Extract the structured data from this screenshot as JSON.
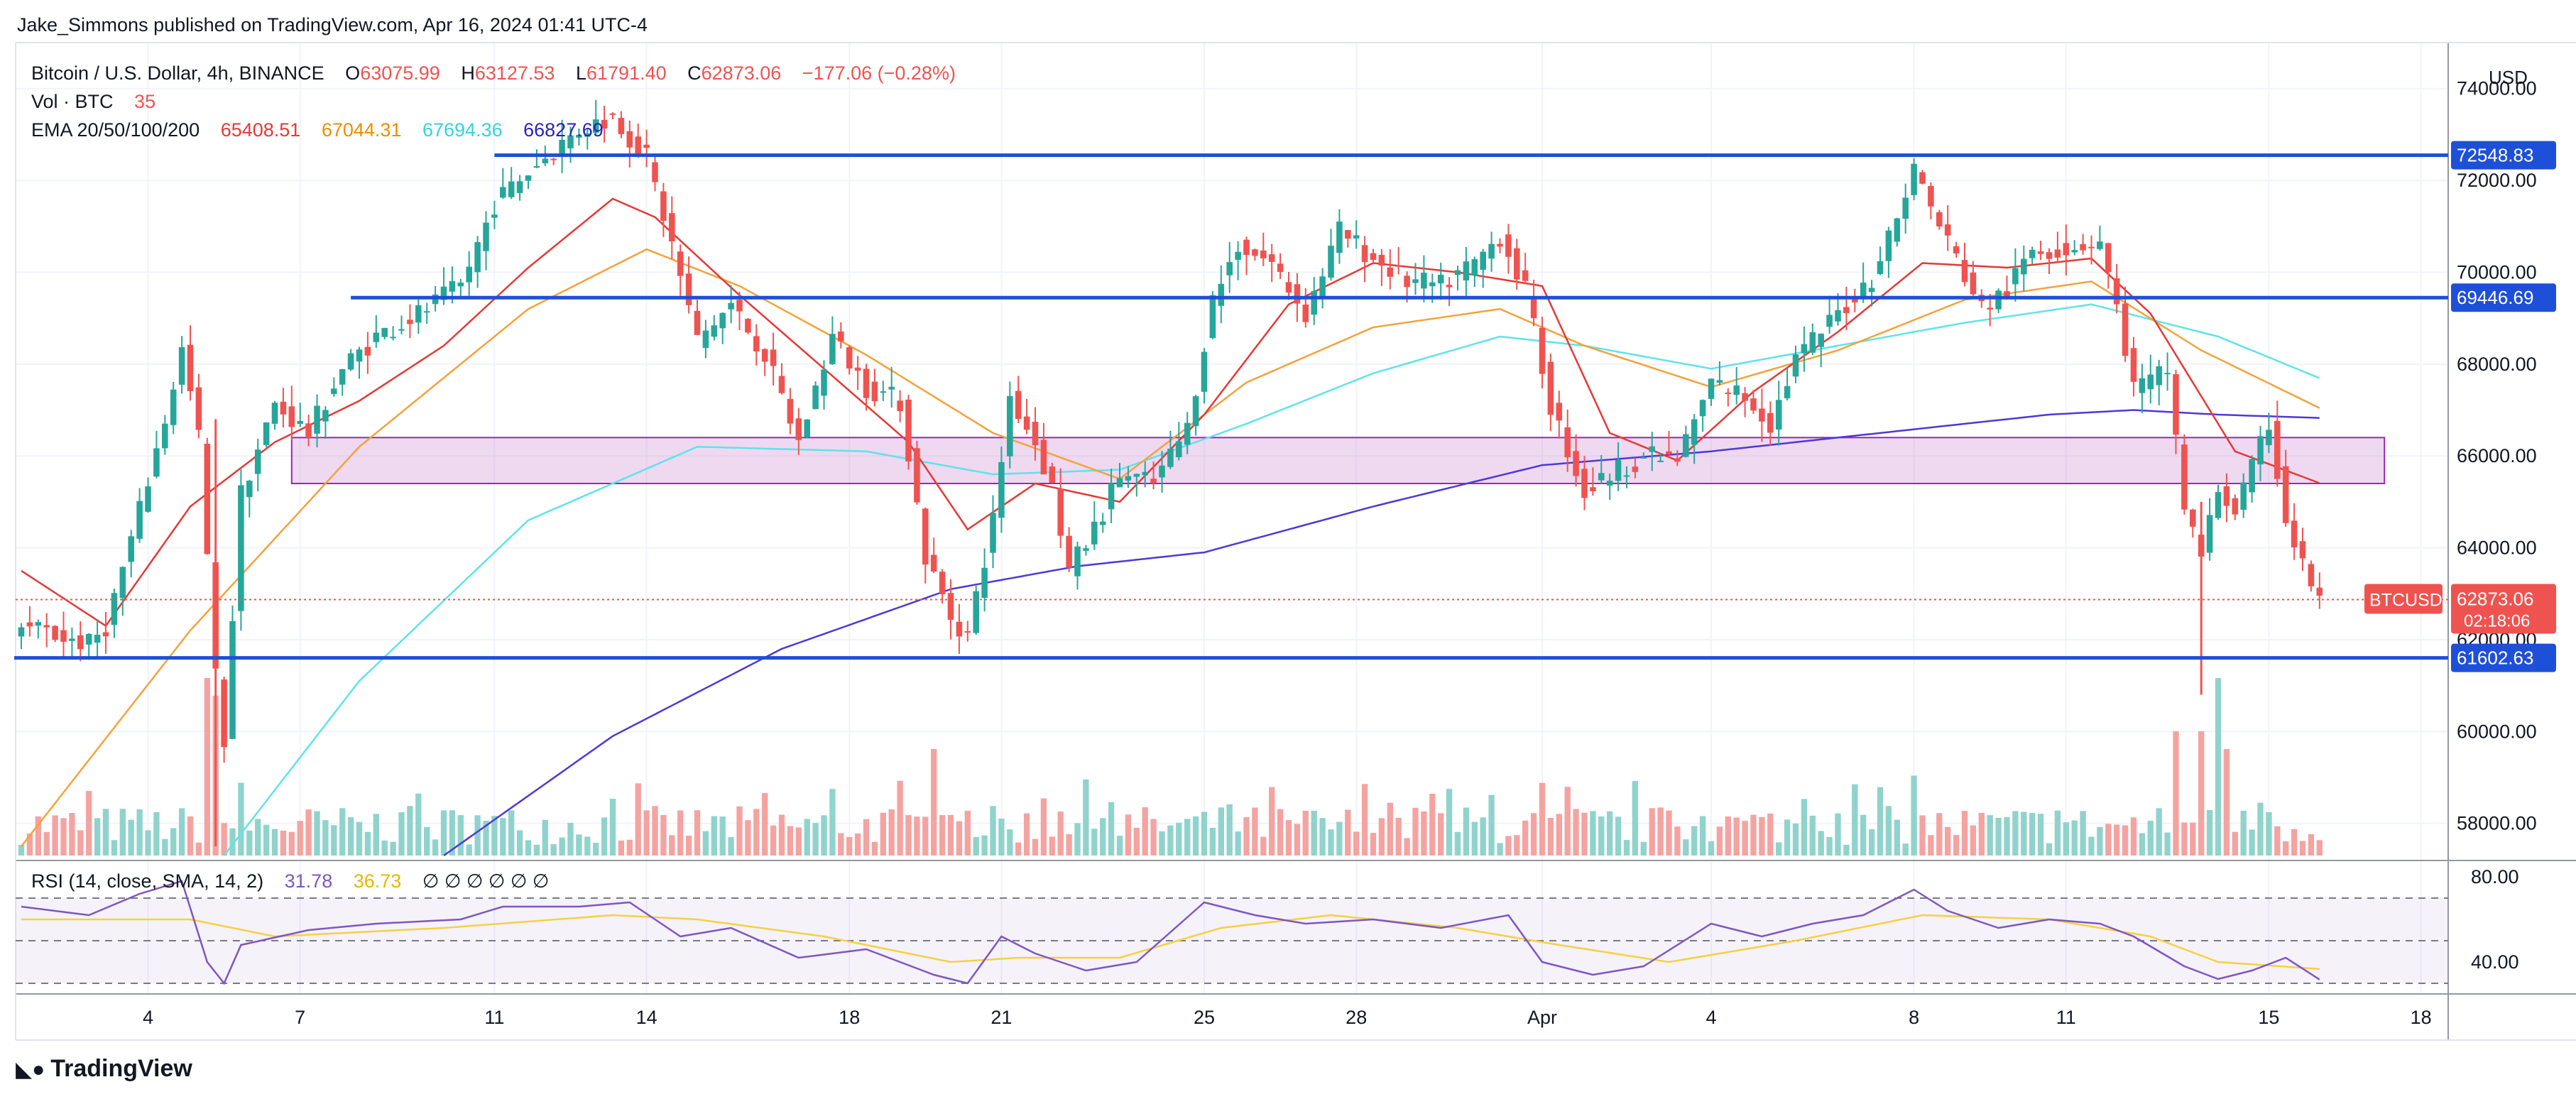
{
  "header": {
    "publisher": "Jake_Simmons published on TradingView.com, Apr 16, 2024 01:41 UTC-4"
  },
  "legend": {
    "symbol": "Bitcoin / U.S. Dollar, 4h, BINANCE",
    "o_label": "O",
    "o": "63075.99",
    "h_label": "H",
    "h": "63127.53",
    "l_label": "L",
    "l": "61791.40",
    "c_label": "C",
    "c": "62873.06",
    "change": "−177.06 (−0.28%)",
    "vol_label": "Vol · BTC",
    "vol": "35",
    "ema_label": "EMA 20/50/100/200",
    "ema20": "65408.51",
    "ema50": "67044.31",
    "ema100": "67694.36",
    "ema200": "66827.69",
    "rsi_label": "RSI (14, close, SMA, 14, 2)",
    "rsi": "31.78",
    "rsi_sma": "36.73",
    "rsi_extra": "∅ ∅ ∅ ∅ ∅ ∅"
  },
  "colors": {
    "up": "#26a69a",
    "down": "#ef5350",
    "ema20": "#e53935",
    "ema50": "#f5a23a",
    "ema100": "#5fe3ea",
    "ema200": "#4f38d8",
    "hline": "#1e4fd8",
    "zone": "#ce93d8",
    "rsi": "#7e57c2",
    "rsi_sma": "#f5d142"
  },
  "brand": "TradingView",
  "chart_data": {
    "type": "candlestick",
    "currency": "USD",
    "ylim": [
      57300,
      75000
    ],
    "y_ticks": [
      "74000.00",
      "72000.00",
      "70000.00",
      "68000.00",
      "66000.00",
      "64000.00",
      "62000.00",
      "60000.00",
      "58000.00"
    ],
    "x_ticks": [
      "4",
      "7",
      "11",
      "14",
      "18",
      "21",
      "25",
      "28",
      "Apr",
      "4",
      "8",
      "11",
      "15",
      "18"
    ],
    "x_tick_index": [
      15,
      33,
      56,
      74,
      98,
      116,
      140,
      158,
      180,
      200,
      224,
      242,
      266,
      284
    ],
    "horizontal_lines": [
      {
        "price": 72548.83,
        "label": "72548.83",
        "from_index": 56
      },
      {
        "price": 69446.69,
        "label": "69446.69",
        "from_index": 39
      },
      {
        "price": 61602.63,
        "label": "61602.63",
        "from_index": 0
      }
    ],
    "zone": {
      "low": 65400,
      "high": 66400,
      "from_index": 32,
      "to_index": 278
    },
    "last_price": {
      "symbol": "BTCUSD",
      "price": "62873.06",
      "countdown": "02:18:06"
    },
    "keyframes_close": [
      [
        0,
        62300
      ],
      [
        8,
        61900
      ],
      [
        10,
        62300
      ],
      [
        14,
        64800
      ],
      [
        17,
        66800
      ],
      [
        19,
        68300
      ],
      [
        21,
        66400
      ],
      [
        23,
        61200
      ],
      [
        24,
        59800
      ],
      [
        26,
        65200
      ],
      [
        30,
        67100
      ],
      [
        34,
        66500
      ],
      [
        38,
        67900
      ],
      [
        42,
        68600
      ],
      [
        48,
        69200
      ],
      [
        52,
        69700
      ],
      [
        56,
        71500
      ],
      [
        60,
        72200
      ],
      [
        66,
        73100
      ],
      [
        70,
        73400
      ],
      [
        74,
        72500
      ],
      [
        77,
        70600
      ],
      [
        80,
        68500
      ],
      [
        84,
        69300
      ],
      [
        88,
        68200
      ],
      [
        92,
        66300
      ],
      [
        96,
        68600
      ],
      [
        100,
        67500
      ],
      [
        104,
        67200
      ],
      [
        107,
        63800
      ],
      [
        110,
        62500
      ],
      [
        112,
        62100
      ],
      [
        115,
        64600
      ],
      [
        117,
        67300
      ],
      [
        120,
        66300
      ],
      [
        122,
        65300
      ],
      [
        124,
        63500
      ],
      [
        127,
        64400
      ],
      [
        130,
        65600
      ],
      [
        134,
        65400
      ],
      [
        138,
        66600
      ],
      [
        141,
        69400
      ],
      [
        144,
        70600
      ],
      [
        148,
        70200
      ],
      [
        152,
        69100
      ],
      [
        156,
        70900
      ],
      [
        160,
        70300
      ],
      [
        164,
        69800
      ],
      [
        168,
        69700
      ],
      [
        172,
        70200
      ],
      [
        175,
        70800
      ],
      [
        178,
        69600
      ],
      [
        181,
        67100
      ],
      [
        185,
        65200
      ],
      [
        188,
        65600
      ],
      [
        192,
        66000
      ],
      [
        196,
        65900
      ],
      [
        200,
        67600
      ],
      [
        204,
        67300
      ],
      [
        207,
        66700
      ],
      [
        210,
        68100
      ],
      [
        213,
        68700
      ],
      [
        216,
        69300
      ],
      [
        219,
        69900
      ],
      [
        222,
        71200
      ],
      [
        224,
        72300
      ],
      [
        226,
        71400
      ],
      [
        229,
        70300
      ],
      [
        232,
        69200
      ],
      [
        235,
        69600
      ],
      [
        238,
        70500
      ],
      [
        241,
        70500
      ],
      [
        244,
        70600
      ],
      [
        246,
        70700
      ],
      [
        248,
        69200
      ],
      [
        250,
        67500
      ],
      [
        252,
        67600
      ],
      [
        254,
        67900
      ],
      [
        256,
        64900
      ],
      [
        258,
        63800
      ],
      [
        260,
        65300
      ],
      [
        262,
        64800
      ],
      [
        264,
        65700
      ],
      [
        266,
        66700
      ],
      [
        268,
        64600
      ],
      [
        270,
        63600
      ],
      [
        272,
        62873
      ]
    ],
    "keyframes_ema20": [
      [
        0,
        63500
      ],
      [
        10,
        62300
      ],
      [
        20,
        64900
      ],
      [
        30,
        66300
      ],
      [
        40,
        67200
      ],
      [
        50,
        68400
      ],
      [
        60,
        70100
      ],
      [
        70,
        71600
      ],
      [
        75,
        71200
      ],
      [
        85,
        69500
      ],
      [
        95,
        67900
      ],
      [
        105,
        66300
      ],
      [
        112,
        64400
      ],
      [
        120,
        65400
      ],
      [
        130,
        65000
      ],
      [
        140,
        66900
      ],
      [
        150,
        69300
      ],
      [
        160,
        70200
      ],
      [
        170,
        70000
      ],
      [
        180,
        69700
      ],
      [
        188,
        66500
      ],
      [
        196,
        65900
      ],
      [
        205,
        67400
      ],
      [
        215,
        68700
      ],
      [
        225,
        70200
      ],
      [
        235,
        70100
      ],
      [
        245,
        70300
      ],
      [
        252,
        69100
      ],
      [
        262,
        66100
      ],
      [
        272,
        65408
      ]
    ],
    "keyframes_ema50": [
      [
        0,
        57500
      ],
      [
        20,
        62200
      ],
      [
        40,
        66200
      ],
      [
        60,
        69200
      ],
      [
        74,
        70500
      ],
      [
        85,
        69700
      ],
      [
        100,
        68200
      ],
      [
        115,
        66500
      ],
      [
        130,
        65500
      ],
      [
        145,
        67600
      ],
      [
        160,
        68800
      ],
      [
        175,
        69200
      ],
      [
        185,
        68400
      ],
      [
        200,
        67500
      ],
      [
        215,
        68300
      ],
      [
        230,
        69400
      ],
      [
        245,
        69800
      ],
      [
        258,
        68300
      ],
      [
        272,
        67044
      ]
    ],
    "keyframes_ema100": [
      [
        24,
        57300
      ],
      [
        40,
        61100
      ],
      [
        60,
        64600
      ],
      [
        80,
        66200
      ],
      [
        100,
        66100
      ],
      [
        115,
        65600
      ],
      [
        130,
        65700
      ],
      [
        145,
        66700
      ],
      [
        160,
        67800
      ],
      [
        175,
        68600
      ],
      [
        185,
        68400
      ],
      [
        200,
        67900
      ],
      [
        215,
        68400
      ],
      [
        230,
        68900
      ],
      [
        245,
        69300
      ],
      [
        260,
        68600
      ],
      [
        272,
        67694
      ]
    ],
    "keyframes_ema200": [
      [
        50,
        57300
      ],
      [
        70,
        59900
      ],
      [
        90,
        61800
      ],
      [
        110,
        63100
      ],
      [
        125,
        63600
      ],
      [
        140,
        63900
      ],
      [
        160,
        64900
      ],
      [
        180,
        65800
      ],
      [
        200,
        66100
      ],
      [
        220,
        66500
      ],
      [
        240,
        66900
      ],
      [
        250,
        67000
      ],
      [
        260,
        66900
      ],
      [
        272,
        66827
      ]
    ],
    "volume_spikes": [
      [
        22,
        1.0
      ],
      [
        23,
        0.9
      ],
      [
        255,
        0.7
      ],
      [
        258,
        0.7
      ],
      [
        260,
        1.0
      ],
      [
        261,
        0.6
      ],
      [
        108,
        0.6
      ],
      [
        224,
        0.45
      ]
    ],
    "rsi_axis_ticks": [
      "80.00",
      "40.00"
    ],
    "rsi_bands": [
      30,
      50,
      70
    ],
    "rsi_ylim": [
      25,
      85
    ],
    "keyframes_rsi": [
      [
        0,
        66
      ],
      [
        8,
        62
      ],
      [
        14,
        72
      ],
      [
        19,
        78
      ],
      [
        22,
        40
      ],
      [
        24,
        30
      ],
      [
        26,
        48
      ],
      [
        34,
        55
      ],
      [
        42,
        58
      ],
      [
        52,
        60
      ],
      [
        57,
        66
      ],
      [
        66,
        66
      ],
      [
        72,
        68
      ],
      [
        78,
        52
      ],
      [
        84,
        56
      ],
      [
        92,
        42
      ],
      [
        100,
        46
      ],
      [
        108,
        34
      ],
      [
        112,
        30
      ],
      [
        116,
        52
      ],
      [
        120,
        44
      ],
      [
        126,
        36
      ],
      [
        132,
        40
      ],
      [
        140,
        68
      ],
      [
        146,
        62
      ],
      [
        152,
        58
      ],
      [
        160,
        60
      ],
      [
        168,
        56
      ],
      [
        176,
        62
      ],
      [
        180,
        40
      ],
      [
        186,
        34
      ],
      [
        192,
        38
      ],
      [
        200,
        58
      ],
      [
        206,
        52
      ],
      [
        212,
        58
      ],
      [
        218,
        62
      ],
      [
        224,
        74
      ],
      [
        228,
        64
      ],
      [
        234,
        56
      ],
      [
        240,
        60
      ],
      [
        246,
        58
      ],
      [
        250,
        52
      ],
      [
        256,
        38
      ],
      [
        260,
        32
      ],
      [
        264,
        36
      ],
      [
        268,
        42
      ],
      [
        272,
        31.78
      ]
    ],
    "keyframes_rsi_sma": [
      [
        0,
        60
      ],
      [
        20,
        60
      ],
      [
        30,
        52
      ],
      [
        50,
        56
      ],
      [
        70,
        62
      ],
      [
        80,
        60
      ],
      [
        95,
        52
      ],
      [
        110,
        40
      ],
      [
        118,
        42
      ],
      [
        130,
        42
      ],
      [
        142,
        56
      ],
      [
        155,
        62
      ],
      [
        170,
        56
      ],
      [
        182,
        48
      ],
      [
        195,
        40
      ],
      [
        210,
        50
      ],
      [
        225,
        62
      ],
      [
        240,
        60
      ],
      [
        252,
        52
      ],
      [
        260,
        40
      ],
      [
        272,
        36.73
      ]
    ]
  }
}
